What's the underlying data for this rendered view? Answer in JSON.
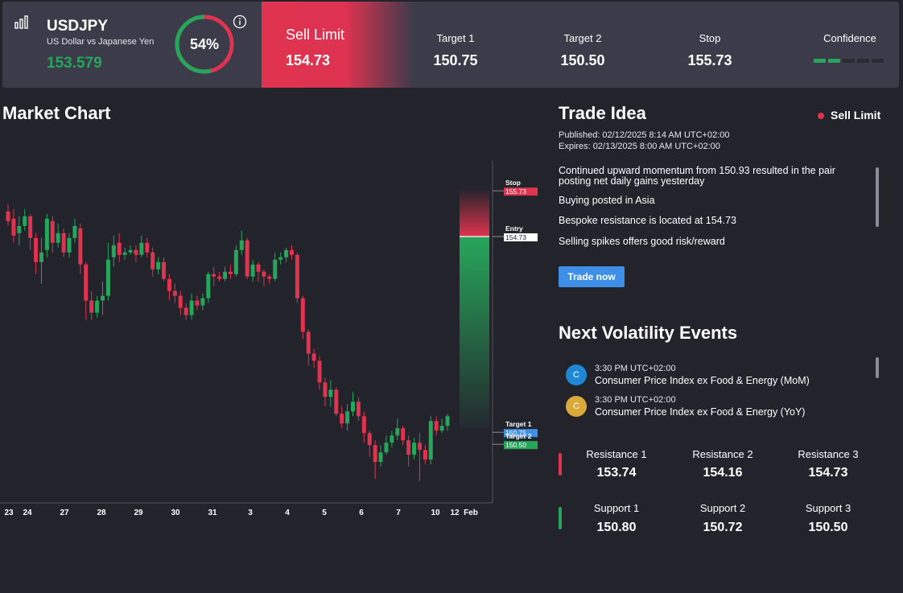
{
  "header": {
    "icon": "bar-chart-icon",
    "symbol": "USDJPY",
    "description": "US Dollar vs Japanese Yen",
    "price": "153.579",
    "gauge_text": "54%",
    "gauge_value": 0.54,
    "info_icon": "info-icon",
    "signal_type": "Sell Limit",
    "signal_price": "154.73",
    "target1_label": "Target 1",
    "target1_value": "150.75",
    "target2_label": "Target 2",
    "target2_value": "150.50",
    "stop_label": "Stop",
    "stop_value": "155.73",
    "confidence_label": "Confidence",
    "confidence_level": 2,
    "confidence_max": 5
  },
  "colors": {
    "bull": "#26a65b",
    "bear": "#e0334f",
    "accent": "#3d8fe8",
    "background": "#23232b"
  },
  "chart": {
    "title": "Market Chart",
    "x_labels": [
      "23",
      "24",
      "27",
      "28",
      "29",
      "30",
      "31",
      "3",
      "4",
      "5",
      "6",
      "7",
      "10",
      "12",
      "Feb"
    ],
    "stop_label": "Stop",
    "stop_value": "155.73",
    "entry_label": "Entry",
    "entry_value": "154.73",
    "target1_label": "Target 1",
    "target1_value": "150.75",
    "target2_label": "Target 2",
    "target2_value": "150.50"
  },
  "chart_data": {
    "type": "candlestick",
    "candles": [
      [
        155.25,
        155.05,
        155.4,
        154.95
      ],
      [
        155.1,
        154.75,
        155.3,
        154.6
      ],
      [
        154.8,
        154.95,
        155.15,
        154.55
      ],
      [
        154.95,
        155.15,
        155.3,
        154.85
      ],
      [
        155.15,
        154.7,
        155.2,
        154.45
      ],
      [
        154.7,
        154.2,
        154.8,
        153.95
      ],
      [
        154.2,
        154.4,
        154.7,
        153.75
      ],
      [
        154.45,
        155.1,
        155.2,
        154.3
      ],
      [
        155.05,
        154.6,
        155.15,
        154.4
      ],
      [
        154.6,
        154.8,
        155.0,
        154.5
      ],
      [
        154.8,
        154.4,
        154.9,
        154.3
      ],
      [
        154.4,
        154.7,
        154.8,
        154.3
      ],
      [
        154.7,
        154.95,
        155.1,
        154.6
      ],
      [
        154.9,
        154.15,
        155.0,
        153.95
      ],
      [
        154.15,
        153.4,
        154.2,
        153.0
      ],
      [
        153.4,
        153.15,
        153.6,
        153.0
      ],
      [
        153.15,
        153.4,
        153.5,
        153.05
      ],
      [
        153.4,
        153.5,
        153.8,
        153.1
      ],
      [
        153.5,
        154.25,
        154.6,
        153.4
      ],
      [
        154.3,
        154.55,
        154.75,
        154.1
      ],
      [
        154.6,
        154.35,
        154.8,
        154.2
      ],
      [
        154.35,
        154.4,
        154.5,
        154.25
      ],
      [
        154.4,
        154.45,
        154.55,
        154.35
      ],
      [
        154.45,
        154.35,
        154.55,
        154.2
      ],
      [
        154.35,
        154.6,
        154.75,
        154.3
      ],
      [
        154.6,
        154.4,
        154.7,
        154.3
      ],
      [
        154.4,
        154.05,
        154.5,
        153.9
      ],
      [
        154.05,
        154.2,
        154.3,
        153.95
      ],
      [
        154.2,
        153.85,
        154.3,
        153.8
      ],
      [
        153.85,
        153.6,
        153.95,
        153.4
      ],
      [
        153.6,
        153.5,
        153.75,
        153.35
      ],
      [
        153.5,
        153.25,
        153.6,
        153.1
      ],
      [
        153.25,
        153.1,
        153.35,
        153.0
      ],
      [
        153.1,
        153.4,
        153.55,
        153.0
      ],
      [
        153.4,
        153.3,
        153.5,
        153.2
      ],
      [
        153.3,
        153.45,
        153.55,
        153.2
      ],
      [
        153.45,
        153.95,
        154.0,
        153.35
      ],
      [
        153.95,
        153.9,
        154.1,
        153.7
      ],
      [
        153.9,
        153.85,
        154.0,
        153.8
      ],
      [
        153.85,
        154.0,
        154.1,
        153.8
      ],
      [
        154.0,
        153.95,
        154.15,
        153.85
      ],
      [
        153.95,
        154.45,
        154.55,
        153.9
      ],
      [
        154.45,
        154.65,
        154.85,
        154.35
      ],
      [
        154.65,
        153.9,
        154.7,
        153.85
      ],
      [
        153.9,
        154.15,
        154.25,
        153.8
      ],
      [
        154.15,
        154.0,
        154.2,
        153.8
      ],
      [
        154.0,
        153.9,
        154.05,
        153.7
      ],
      [
        153.9,
        153.85,
        153.95,
        153.75
      ],
      [
        153.85,
        154.25,
        154.4,
        153.8
      ],
      [
        154.25,
        154.3,
        154.4,
        154.15
      ],
      [
        154.3,
        154.45,
        154.5,
        154.2
      ],
      [
        154.45,
        154.35,
        154.55,
        154.25
      ],
      [
        154.35,
        153.45,
        154.4,
        153.35
      ],
      [
        153.45,
        152.75,
        153.5,
        152.6
      ],
      [
        152.75,
        152.3,
        152.8,
        152.05
      ],
      [
        152.3,
        152.15,
        152.4,
        152.0
      ],
      [
        152.15,
        151.7,
        152.25,
        151.55
      ],
      [
        151.7,
        151.4,
        151.8,
        151.2
      ],
      [
        151.4,
        151.55,
        151.75,
        151.2
      ],
      [
        151.55,
        151.05,
        151.6,
        151.0
      ],
      [
        151.05,
        150.85,
        151.2,
        150.75
      ],
      [
        150.85,
        151.1,
        151.25,
        150.7
      ],
      [
        151.1,
        151.3,
        151.5,
        151.0
      ],
      [
        151.3,
        151.0,
        151.4,
        150.9
      ],
      [
        151.0,
        150.65,
        151.1,
        150.45
      ],
      [
        150.65,
        150.4,
        150.7,
        150.15
      ],
      [
        150.4,
        150.05,
        150.5,
        149.7
      ],
      [
        150.05,
        150.25,
        150.4,
        149.95
      ],
      [
        150.25,
        150.45,
        150.6,
        150.2
      ],
      [
        150.45,
        150.6,
        150.7,
        150.35
      ],
      [
        150.6,
        150.75,
        150.95,
        150.5
      ],
      [
        150.75,
        150.5,
        150.8,
        150.4
      ],
      [
        150.5,
        150.2,
        150.6,
        149.95
      ],
      [
        150.2,
        150.45,
        150.55,
        150.1
      ],
      [
        150.45,
        150.3,
        150.65,
        149.65
      ],
      [
        150.3,
        150.1,
        150.4,
        150.0
      ],
      [
        150.1,
        150.9,
        151.0,
        150.0
      ],
      [
        150.9,
        150.7,
        151.0,
        150.6
      ],
      [
        150.7,
        150.8,
        150.95,
        150.65
      ],
      [
        150.8,
        151.0,
        151.05,
        150.7
      ]
    ],
    "ylim": [
      149.2,
      156.3
    ]
  },
  "trade_idea": {
    "title": "Trade Idea",
    "badge": "Sell Limit",
    "published": "Published: 02/12/2025 8:14 AM UTC+02:00",
    "expires": "Expires: 02/13/2025 8:00 AM UTC+02:00",
    "lines": [
      "Continued upward momentum from 150.93 resulted in the pair posting net daily gains yesterday",
      "Buying posted in Asia",
      "Bespoke resistance is located at 154.73",
      "Selling spikes offers good risk/reward"
    ],
    "button": "Trade now"
  },
  "events": {
    "title": "Next Volatility Events",
    "items": [
      {
        "icon": "C",
        "time": "3:30 PM UTC+02:00",
        "name": "Consumer Price Index ex Food & Energy (MoM)",
        "color": "#1e88d6"
      },
      {
        "icon": "C",
        "time": "3:30 PM UTC+02:00",
        "name": "Consumer Price Index ex Food & Energy (YoY)",
        "color": "#d9a93a"
      }
    ]
  },
  "levels": {
    "resistance": [
      {
        "label": "Resistance 1",
        "value": "153.74"
      },
      {
        "label": "Resistance 2",
        "value": "154.16"
      },
      {
        "label": "Resistance 3",
        "value": "154.73"
      }
    ],
    "support": [
      {
        "label": "Support 1",
        "value": "150.80"
      },
      {
        "label": "Support 2",
        "value": "150.72"
      },
      {
        "label": "Support 3",
        "value": "150.50"
      }
    ]
  }
}
